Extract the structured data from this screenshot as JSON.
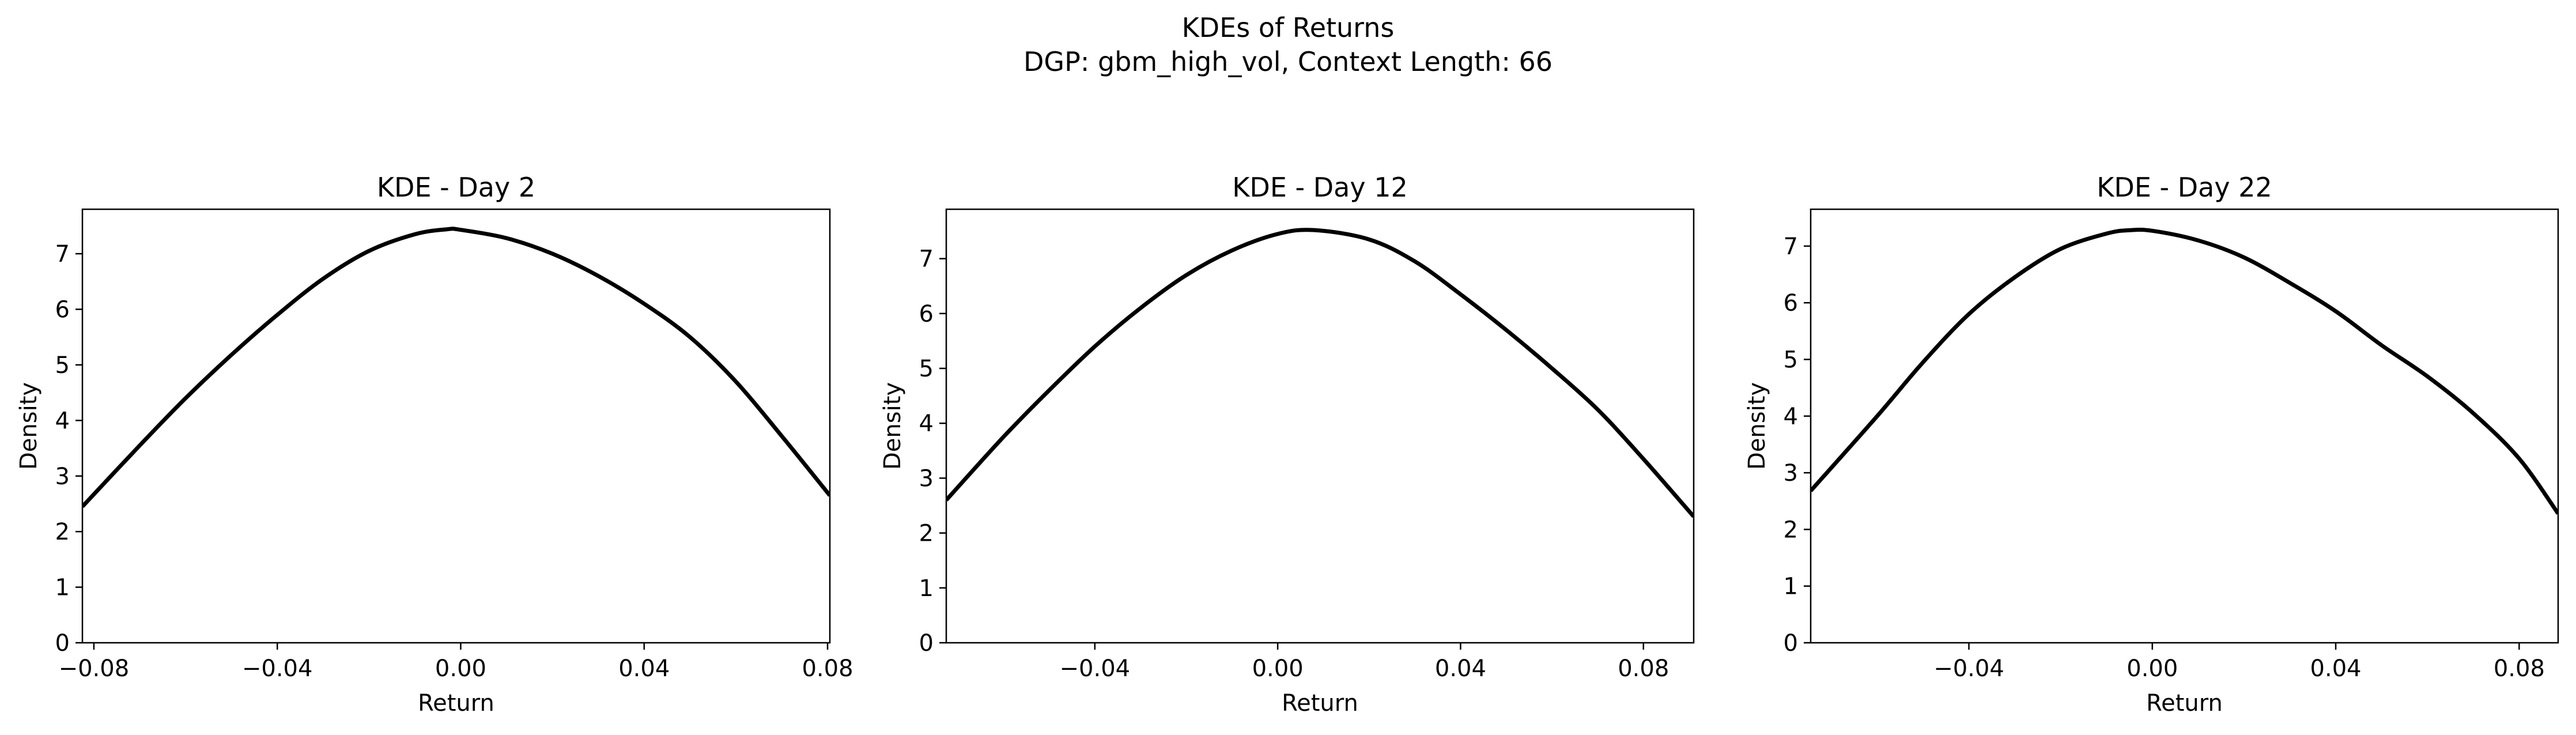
{
  "figure": {
    "suptitle_line1": "KDEs of Returns",
    "suptitle_line2": "DGP: gbm_high_vol, Context Length: 66"
  },
  "chart_data": [
    {
      "type": "line",
      "title": "KDE - Day 2",
      "xlabel": "Return",
      "ylabel": "Density",
      "xlim": [
        -0.0825,
        0.0805
      ],
      "ylim": [
        0,
        7.8
      ],
      "xticks": [
        -0.08,
        -0.04,
        0.0,
        0.04,
        0.08
      ],
      "xtick_labels": [
        "−0.08",
        "−0.04",
        "0.00",
        "0.04",
        "0.08"
      ],
      "yticks": [
        0,
        1,
        2,
        3,
        4,
        5,
        6,
        7
      ],
      "grid": false,
      "line_color": "#000000",
      "x": [
        -0.0825,
        -0.07,
        -0.06,
        -0.05,
        -0.04,
        -0.03,
        -0.02,
        -0.01,
        -0.003,
        0.0,
        0.01,
        0.02,
        0.03,
        0.04,
        0.05,
        0.06,
        0.07,
        0.0805
      ],
      "y": [
        2.45,
        3.55,
        4.4,
        5.18,
        5.9,
        6.55,
        7.05,
        7.35,
        7.44,
        7.43,
        7.28,
        7.0,
        6.6,
        6.1,
        5.5,
        4.7,
        3.72,
        2.65
      ]
    },
    {
      "type": "line",
      "title": "KDE - Day 12",
      "xlabel": "Return",
      "ylabel": "Density",
      "xlim": [
        -0.0725,
        0.091
      ],
      "ylim": [
        0,
        7.9
      ],
      "xticks": [
        -0.04,
        0.0,
        0.04,
        0.08
      ],
      "xtick_labels": [
        "−0.04",
        "0.00",
        "0.04",
        "0.08"
      ],
      "yticks": [
        0,
        1,
        2,
        3,
        4,
        5,
        6,
        7
      ],
      "grid": false,
      "line_color": "#000000",
      "x": [
        -0.0725,
        -0.06,
        -0.05,
        -0.04,
        -0.03,
        -0.02,
        -0.01,
        0.0,
        0.008,
        0.02,
        0.03,
        0.04,
        0.05,
        0.06,
        0.07,
        0.08,
        0.091
      ],
      "y": [
        2.6,
        3.75,
        4.6,
        5.4,
        6.1,
        6.7,
        7.15,
        7.45,
        7.52,
        7.35,
        6.95,
        6.35,
        5.7,
        5.0,
        4.25,
        3.35,
        2.3
      ]
    },
    {
      "type": "line",
      "title": "KDE - Day 22",
      "xlabel": "Return",
      "ylabel": "Density",
      "xlim": [
        -0.0745,
        0.0885
      ],
      "ylim": [
        0,
        7.65
      ],
      "xticks": [
        -0.04,
        0.0,
        0.04,
        0.08
      ],
      "xtick_labels": [
        "−0.04",
        "0.00",
        "0.04",
        "0.08"
      ],
      "yticks": [
        0,
        1,
        2,
        3,
        4,
        5,
        6,
        7
      ],
      "grid": false,
      "line_color": "#000000",
      "x": [
        -0.0745,
        -0.06,
        -0.05,
        -0.04,
        -0.03,
        -0.02,
        -0.01,
        -0.005,
        0.0,
        0.01,
        0.02,
        0.03,
        0.04,
        0.05,
        0.06,
        0.07,
        0.08,
        0.0885
      ],
      "y": [
        2.68,
        4.0,
        4.95,
        5.8,
        6.45,
        6.95,
        7.22,
        7.28,
        7.27,
        7.1,
        6.8,
        6.35,
        5.85,
        5.25,
        4.7,
        4.05,
        3.25,
        2.28
      ]
    }
  ]
}
